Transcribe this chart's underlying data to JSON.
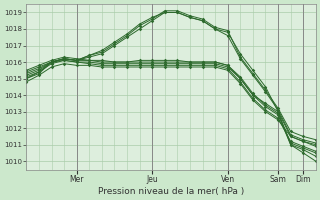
{
  "xlabel": "Pression niveau de la mer( hPa )",
  "bg_color": "#cce8cc",
  "plot_bg_color": "#ddeedd",
  "grid_color": "#aaccaa",
  "line_color": "#2d6a2d",
  "yticks": [
    1010,
    1011,
    1012,
    1013,
    1014,
    1015,
    1016,
    1017,
    1018,
    1019
  ],
  "ylim": [
    1009.5,
    1019.5
  ],
  "day_labels": [
    "Mer",
    "Jeu",
    "Ven",
    "Sam",
    "Dim"
  ],
  "day_x": [
    8,
    20,
    32,
    40,
    44
  ],
  "xlim": [
    0,
    46
  ],
  "series": [
    {
      "pts": [
        [
          0,
          1015.0
        ],
        [
          2,
          1015.3
        ],
        [
          4,
          1016.0
        ],
        [
          6,
          1016.2
        ],
        [
          8,
          1016.1
        ],
        [
          10,
          1016.3
        ],
        [
          12,
          1016.5
        ],
        [
          14,
          1017.0
        ],
        [
          16,
          1017.5
        ],
        [
          18,
          1018.0
        ],
        [
          20,
          1018.5
        ],
        [
          22,
          1019.0
        ],
        [
          24,
          1019.0
        ],
        [
          26,
          1018.7
        ],
        [
          28,
          1018.5
        ],
        [
          30,
          1018.0
        ],
        [
          32,
          1017.8
        ],
        [
          34,
          1016.5
        ],
        [
          36,
          1015.5
        ],
        [
          38,
          1014.5
        ],
        [
          40,
          1013.0
        ],
        [
          42,
          1011.5
        ],
        [
          44,
          1011.2
        ],
        [
          46,
          1011.0
        ]
      ]
    },
    {
      "pts": [
        [
          0,
          1015.2
        ],
        [
          2,
          1015.5
        ],
        [
          4,
          1016.0
        ],
        [
          6,
          1016.2
        ],
        [
          8,
          1016.1
        ],
        [
          10,
          1016.4
        ],
        [
          12,
          1016.6
        ],
        [
          14,
          1017.1
        ],
        [
          16,
          1017.6
        ],
        [
          18,
          1018.2
        ],
        [
          20,
          1018.6
        ],
        [
          22,
          1019.1
        ],
        [
          24,
          1019.1
        ],
        [
          26,
          1018.8
        ],
        [
          28,
          1018.6
        ],
        [
          30,
          1018.1
        ],
        [
          32,
          1017.9
        ],
        [
          34,
          1016.3
        ],
        [
          36,
          1015.3
        ],
        [
          38,
          1014.3
        ],
        [
          40,
          1013.2
        ],
        [
          42,
          1011.8
        ],
        [
          44,
          1011.5
        ],
        [
          46,
          1011.3
        ]
      ]
    },
    {
      "pts": [
        [
          0,
          1015.5
        ],
        [
          2,
          1015.8
        ],
        [
          4,
          1016.1
        ],
        [
          6,
          1016.3
        ],
        [
          8,
          1016.2
        ],
        [
          10,
          1016.1
        ],
        [
          12,
          1016.0
        ],
        [
          14,
          1016.0
        ],
        [
          16,
          1016.0
        ],
        [
          18,
          1016.0
        ],
        [
          20,
          1016.0
        ],
        [
          22,
          1016.0
        ],
        [
          24,
          1016.0
        ],
        [
          26,
          1016.0
        ],
        [
          28,
          1016.0
        ],
        [
          30,
          1016.0
        ],
        [
          32,
          1015.8
        ],
        [
          34,
          1015.0
        ],
        [
          36,
          1014.0
        ],
        [
          38,
          1013.5
        ],
        [
          40,
          1013.0
        ],
        [
          42,
          1011.0
        ],
        [
          44,
          1010.5
        ],
        [
          46,
          1010.0
        ]
      ]
    },
    {
      "pts": [
        [
          0,
          1015.3
        ],
        [
          2,
          1015.6
        ],
        [
          4,
          1016.0
        ],
        [
          6,
          1016.1
        ],
        [
          8,
          1016.0
        ],
        [
          10,
          1016.0
        ],
        [
          12,
          1015.9
        ],
        [
          14,
          1015.9
        ],
        [
          16,
          1015.9
        ],
        [
          18,
          1015.9
        ],
        [
          20,
          1015.9
        ],
        [
          22,
          1015.9
        ],
        [
          24,
          1015.9
        ],
        [
          26,
          1015.9
        ],
        [
          28,
          1015.9
        ],
        [
          30,
          1015.9
        ],
        [
          32,
          1015.7
        ],
        [
          34,
          1015.0
        ],
        [
          36,
          1014.0
        ],
        [
          38,
          1013.3
        ],
        [
          40,
          1012.8
        ],
        [
          42,
          1011.0
        ],
        [
          44,
          1010.7
        ],
        [
          46,
          1010.3
        ]
      ]
    },
    {
      "pts": [
        [
          0,
          1015.1
        ],
        [
          2,
          1015.4
        ],
        [
          4,
          1015.9
        ],
        [
          6,
          1016.1
        ],
        [
          8,
          1016.0
        ],
        [
          10,
          1015.9
        ],
        [
          12,
          1015.8
        ],
        [
          14,
          1015.8
        ],
        [
          16,
          1015.8
        ],
        [
          18,
          1015.8
        ],
        [
          20,
          1015.8
        ],
        [
          22,
          1015.8
        ],
        [
          24,
          1015.8
        ],
        [
          26,
          1015.8
        ],
        [
          28,
          1015.8
        ],
        [
          30,
          1015.8
        ],
        [
          32,
          1015.6
        ],
        [
          34,
          1014.8
        ],
        [
          36,
          1013.8
        ],
        [
          38,
          1013.1
        ],
        [
          40,
          1012.6
        ],
        [
          42,
          1011.2
        ],
        [
          44,
          1010.9
        ],
        [
          46,
          1010.6
        ]
      ]
    },
    {
      "pts": [
        [
          0,
          1014.8
        ],
        [
          2,
          1015.2
        ],
        [
          4,
          1015.7
        ],
        [
          6,
          1015.9
        ],
        [
          8,
          1015.8
        ],
        [
          10,
          1015.8
        ],
        [
          12,
          1015.7
        ],
        [
          14,
          1015.7
        ],
        [
          16,
          1015.7
        ],
        [
          18,
          1015.7
        ],
        [
          20,
          1015.7
        ],
        [
          22,
          1015.7
        ],
        [
          24,
          1015.7
        ],
        [
          26,
          1015.7
        ],
        [
          28,
          1015.7
        ],
        [
          30,
          1015.7
        ],
        [
          32,
          1015.5
        ],
        [
          34,
          1014.7
        ],
        [
          36,
          1013.7
        ],
        [
          38,
          1013.0
        ],
        [
          40,
          1012.5
        ],
        [
          42,
          1011.5
        ],
        [
          44,
          1011.2
        ],
        [
          46,
          1010.9
        ]
      ]
    },
    {
      "pts": [
        [
          0,
          1015.4
        ],
        [
          2,
          1015.7
        ],
        [
          4,
          1016.0
        ],
        [
          6,
          1016.2
        ],
        [
          8,
          1016.1
        ],
        [
          10,
          1016.1
        ],
        [
          12,
          1016.1
        ],
        [
          14,
          1016.0
        ],
        [
          16,
          1016.0
        ],
        [
          18,
          1016.1
        ],
        [
          20,
          1016.1
        ],
        [
          22,
          1016.1
        ],
        [
          24,
          1016.1
        ],
        [
          26,
          1016.0
        ],
        [
          28,
          1016.0
        ],
        [
          30,
          1016.0
        ],
        [
          32,
          1015.8
        ],
        [
          34,
          1015.1
        ],
        [
          36,
          1014.1
        ],
        [
          38,
          1013.4
        ],
        [
          40,
          1012.9
        ],
        [
          42,
          1011.1
        ],
        [
          44,
          1010.8
        ],
        [
          46,
          1010.5
        ]
      ]
    },
    {
      "pts": [
        [
          0,
          1015.0
        ],
        [
          2,
          1015.4
        ],
        [
          4,
          1016.0
        ],
        [
          6,
          1016.2
        ],
        [
          8,
          1016.1
        ],
        [
          10,
          1016.4
        ],
        [
          12,
          1016.7
        ],
        [
          14,
          1017.2
        ],
        [
          16,
          1017.7
        ],
        [
          18,
          1018.3
        ],
        [
          20,
          1018.7
        ],
        [
          22,
          1019.0
        ],
        [
          24,
          1019.0
        ],
        [
          26,
          1018.7
        ],
        [
          28,
          1018.5
        ],
        [
          30,
          1018.0
        ],
        [
          32,
          1017.6
        ],
        [
          34,
          1016.2
        ],
        [
          36,
          1015.2
        ],
        [
          38,
          1014.2
        ],
        [
          40,
          1013.1
        ],
        [
          42,
          1011.6
        ],
        [
          44,
          1011.3
        ],
        [
          46,
          1011.1
        ]
      ]
    }
  ]
}
